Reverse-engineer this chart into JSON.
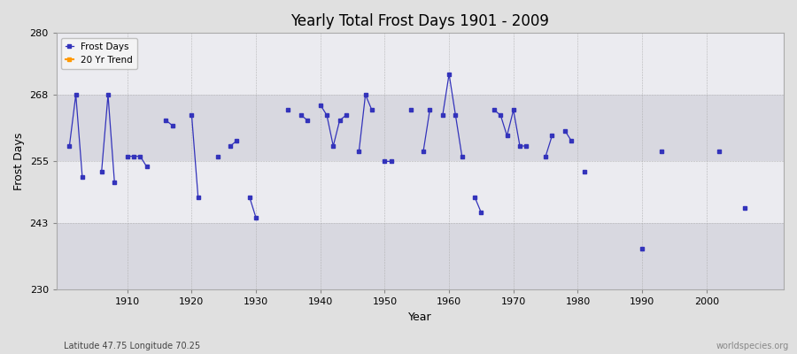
{
  "title": "Yearly Total Frost Days 1901 - 2009",
  "xlabel": "Year",
  "ylabel": "Frost Days",
  "ylim": [
    230,
    280
  ],
  "yticks": [
    230,
    243,
    255,
    268,
    280
  ],
  "background_color": "#e0e0e0",
  "plot_bg_color_light": "#ebebf0",
  "plot_bg_color_dark": "#d8d8e0",
  "line_color": "#3333bb",
  "marker_color": "#3333bb",
  "trend_color": "#ff9900",
  "subtitle": "Latitude 47.75 Longitude 70.25",
  "watermark": "worldspecies.org",
  "legend_frost": "Frost Days",
  "legend_trend": "20 Yr Trend",
  "xlim": [
    1899,
    2012
  ],
  "xticks": [
    1910,
    1920,
    1930,
    1940,
    1950,
    1960,
    1970,
    1980,
    1990,
    2000
  ],
  "years": [
    1901,
    1902,
    1903,
    1906,
    1907,
    1908,
    1910,
    1911,
    1912,
    1913,
    1916,
    1917,
    1920,
    1921,
    1924,
    1926,
    1927,
    1929,
    1930,
    1935,
    1937,
    1938,
    1940,
    1941,
    1942,
    1943,
    1944,
    1946,
    1947,
    1948,
    1950,
    1951,
    1954,
    1956,
    1957,
    1959,
    1960,
    1961,
    1962,
    1964,
    1965,
    1967,
    1968,
    1969,
    1970,
    1971,
    1972,
    1975,
    1976,
    1978,
    1979,
    1981,
    1990,
    1993,
    2002,
    2006
  ],
  "values": [
    258,
    268,
    252,
    253,
    268,
    251,
    256,
    256,
    256,
    254,
    263,
    262,
    264,
    248,
    256,
    258,
    259,
    248,
    244,
    265,
    264,
    263,
    266,
    264,
    258,
    263,
    264,
    257,
    268,
    265,
    255,
    255,
    265,
    257,
    265,
    264,
    272,
    264,
    256,
    248,
    245,
    265,
    264,
    260,
    265,
    258,
    258,
    256,
    260,
    261,
    259,
    253,
    238,
    257,
    257,
    246
  ]
}
